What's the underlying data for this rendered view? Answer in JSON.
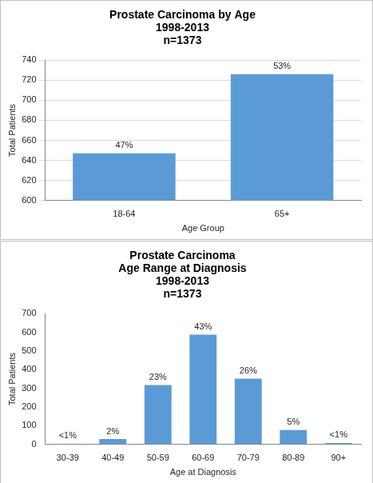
{
  "chart_data": [
    {
      "type": "bar",
      "title": [
        "Prostate Carcinoma by Age",
        "1998-2013",
        "n=1373"
      ],
      "x_label": "Age Group",
      "y_label": "Total Patients",
      "categories": [
        "18-64",
        "65+"
      ],
      "values": [
        647,
        726
      ],
      "percent_labels": [
        "47%",
        "53%"
      ],
      "data_labels": true,
      "color": "#5b9bd5",
      "ylim": [
        600,
        740
      ],
      "yticks": [
        600,
        620,
        640,
        660,
        680,
        700,
        720,
        740
      ],
      "grid": true
    },
    {
      "type": "bar",
      "title": [
        "Prostate Carcinoma",
        "Age Range at Diagnosis",
        "1998-2013",
        "n=1373"
      ],
      "x_label": "Age at Diagnosis",
      "y_label": "Total Patients",
      "categories": [
        "30-39",
        "40-49",
        "50-59",
        "60-69",
        "70-79",
        "80-89",
        "90+"
      ],
      "values": [
        3,
        28,
        318,
        588,
        352,
        77,
        7
      ],
      "percent_labels": [
        "<1%",
        "2%",
        "23%",
        "43%",
        "26%",
        "5%",
        "<1%"
      ],
      "data_labels": true,
      "color": "#5b9bd5",
      "ylim": [
        0,
        700
      ],
      "yticks": [
        0,
        100,
        200,
        300,
        400,
        500,
        600,
        700
      ],
      "grid": false
    }
  ]
}
